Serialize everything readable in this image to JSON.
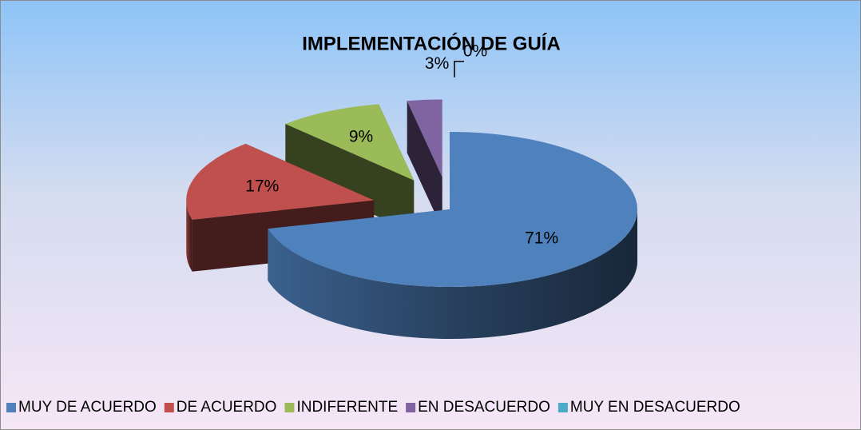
{
  "chart_data": {
    "type": "pie",
    "title": "IMPLEMENTACIÓN DE GUÍA",
    "categories": [
      "MUY DE ACUERDO",
      "DE ACUERDO",
      "INDIFERENTE",
      "EN DESACUERDO",
      "MUY EN DESACUERDO"
    ],
    "values": [
      71,
      17,
      9,
      3,
      0
    ],
    "value_labels": [
      "71%",
      "17%",
      "9%",
      "3%",
      "0%"
    ],
    "colors": [
      "#4f81bd",
      "#c0504d",
      "#9bbb59",
      "#8064a2",
      "#4bacc6"
    ],
    "legend": "bottom"
  }
}
